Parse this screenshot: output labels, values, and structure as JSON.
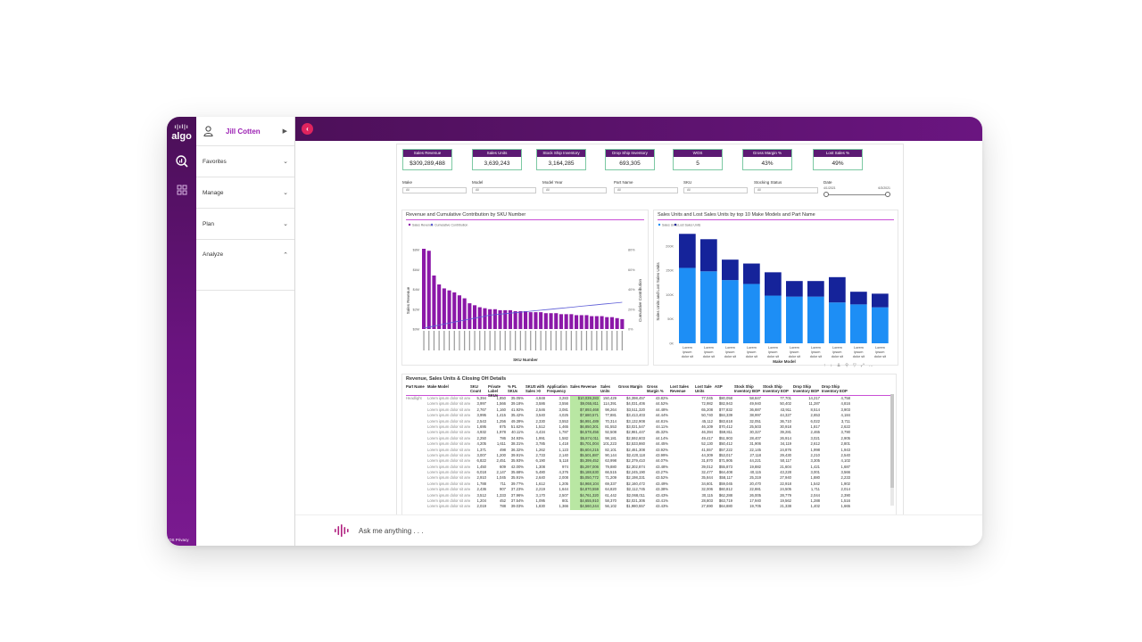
{
  "app": {
    "logo_text": "algo",
    "footer_links": "OS   Privacy"
  },
  "nav": {
    "user_name": "Jill Cotten",
    "sections": [
      {
        "label": "Favorites",
        "chevron": "chevron-down-icon"
      },
      {
        "label": "Manage",
        "chevron": "chevron-down-icon"
      },
      {
        "label": "Plan",
        "chevron": "chevron-down-icon"
      },
      {
        "label": "Analyze",
        "chevron": "chevron-up-icon"
      }
    ]
  },
  "kpis": [
    {
      "title": "Sales Revenue",
      "value": "$309,289,488"
    },
    {
      "title": "Sales Units",
      "value": "3,639,243"
    },
    {
      "title": "Stock Ship Inventory",
      "value": "3,164,285"
    },
    {
      "title": "Drop Ship Inventory",
      "value": "693,305"
    },
    {
      "title": "WOS",
      "value": "5"
    },
    {
      "title": "Gross Margin %",
      "value": "43%"
    },
    {
      "title": "Lost Sales %",
      "value": "49%"
    }
  ],
  "filters": [
    {
      "label": "Make",
      "value": "All"
    },
    {
      "label": "Model",
      "value": "All"
    },
    {
      "label": "Model Year",
      "value": "All"
    },
    {
      "label": "Part Name",
      "value": "All"
    },
    {
      "label": "SKU",
      "value": "All"
    },
    {
      "label": "Stocking Status",
      "value": "All"
    }
  ],
  "date_filter": {
    "label": "Date",
    "start": "4/1/2021",
    "end": "6/3/2021"
  },
  "charts": {
    "pareto": {
      "title": "Revenue and Cumulative Contribution by SKU Number",
      "legend": [
        "Sales Revenue",
        "Cumulative Contribution"
      ],
      "xlabel": "SKU Number",
      "ylabel": "Sales Revenue",
      "y2label": "Cumulative Contribution",
      "yticks": [
        "$0M",
        "$2M",
        "$4M",
        "$6M",
        "$8M"
      ],
      "y2ticks": [
        "0%",
        "20%",
        "40%",
        "60%",
        "80%"
      ]
    },
    "stacked": {
      "title": "Sales Units and Lost Sales Units by top 10 Make Models and Part Name",
      "legend": [
        "Sales Units",
        "Lost Sales Units"
      ],
      "xlabel": "Make Model",
      "ylabel": "Sales Units and Lost Sales Units",
      "yticks": [
        "0K",
        "50K",
        "100K",
        "150K",
        "200K"
      ],
      "category_label": "Lorem ipsum dolor sit"
    }
  },
  "chart_data": [
    {
      "type": "bar",
      "title": "Revenue and Cumulative Contribution by SKU Number",
      "xlabel": "SKU Number",
      "ylabel": "Sales Revenue",
      "ylim": [
        0,
        9
      ],
      "series": [
        {
          "name": "Sales Revenue",
          "values": [
            8.1,
            7.9,
            5.4,
            4.5,
            4.1,
            3.9,
            3.7,
            3.4,
            3.1,
            2.6,
            2.4,
            2.2,
            2.1,
            2.0,
            2.0,
            1.9,
            1.9,
            1.9,
            1.8,
            1.8,
            1.8,
            1.7,
            1.7,
            1.7,
            1.6,
            1.6,
            1.6,
            1.5,
            1.5,
            1.5,
            1.4,
            1.4,
            1.4,
            1.3,
            1.3,
            1.3,
            1.2,
            1.2,
            1.1,
            1.0
          ]
        },
        {
          "name": "Cumulative Contribution",
          "axis": "right",
          "ylim": [
            0,
            90
          ],
          "values": [
            1,
            2,
            3,
            4,
            5,
            6,
            7,
            8,
            9,
            10,
            11,
            12,
            13,
            14,
            14.5,
            15,
            15.5,
            16,
            16.5,
            17,
            17.5,
            18,
            18.5,
            19,
            19.5,
            20,
            20.5,
            21,
            21.5,
            22,
            22.5,
            23,
            23.5,
            24,
            24.5,
            25,
            25.5,
            26,
            26.5,
            27
          ]
        }
      ]
    },
    {
      "type": "bar",
      "title": "Sales Units and Lost Sales Units by top 10 Make Models and Part Name",
      "xlabel": "Make Model",
      "ylabel": "Sales Units and Lost Sales Units",
      "ylim": [
        0,
        220
      ],
      "stacked": true,
      "categories": [
        "Lorem ipsum dolor sit",
        "Lorem ipsum dolor sit",
        "Lorem ipsum dolor sit",
        "Lorem ipsum dolor sit",
        "Lorem ipsum dolor sit",
        "Lorem ipsum dolor sit",
        "Lorem ipsum dolor sit",
        "Lorem ipsum dolor sit",
        "Lorem ipsum dolor sit",
        "Lorem ipsum dolor sit"
      ],
      "series": [
        {
          "name": "Sales Units",
          "values": [
            155,
            148,
            130,
            122,
            98,
            96,
            96,
            84,
            80,
            74
          ]
        },
        {
          "name": "Lost Sales Units",
          "values": [
            70,
            66,
            42,
            42,
            48,
            32,
            32,
            52,
            26,
            28
          ]
        }
      ]
    }
  ],
  "table": {
    "title": "Revenue, Sales Units & Closing OH Details",
    "columns": [
      "Part Name",
      "Make Model",
      "SKU Count",
      "Private Label SKUs",
      "% PL SKUs",
      "SKUS with Sales >0",
      "Application Frequency",
      "Sales Revenue",
      "Sales Units",
      "Gross Margin",
      "Gross Margin %",
      "Lost Sales Revenue",
      "Lost Sale Units",
      "ASP",
      "Stock Ship Inventory BOP",
      "Stock Ship Inventory EOP",
      "Drop Ship Inventory BOP",
      "Drop Ship Inventory EOP"
    ],
    "rows": [
      [
        "Headlight",
        "Lorem ipsum dolor sit amet",
        "5,394",
        "1,850",
        "35.05%",
        "4,848",
        "3,283",
        "$10,039,283",
        "150,429",
        "$4,398,457",
        "43.82%",
        "",
        "77,045",
        "$80,058",
        "58,847",
        "77,701",
        "14,217",
        "4,758"
      ],
      [
        "",
        "Lorem ipsum dolor sit amet",
        "3,997",
        "1,566",
        "39.18%",
        "3,586",
        "3,556",
        "$9,055,811",
        "114,391",
        "$4,031,406",
        "44.52%",
        "",
        "72,982",
        "$82,943",
        "49,940",
        "50,402",
        "11,287",
        "4,816"
      ],
      [
        "",
        "Lorem ipsum dolor sit amet",
        "2,767",
        "1,160",
        "41.92%",
        "2,546",
        "3,081",
        "$7,893,468",
        "98,264",
        "$3,511,320",
        "44.48%",
        "",
        "65,208",
        "$77,832",
        "36,887",
        "43,911",
        "8,514",
        "3,903"
      ],
      [
        "",
        "Lorem ipsum dolor sit amet",
        "3,995",
        "1,415",
        "35.42%",
        "3,540",
        "4,025",
        "$7,680,571",
        "77,881",
        "$3,413,403",
        "44.44%",
        "",
        "50,740",
        "$84,339",
        "38,997",
        "44,327",
        "2,653",
        "4,184"
      ],
      [
        "",
        "Lorem ipsum dolor sit amet",
        "2,543",
        "1,256",
        "49.39%",
        "2,330",
        "3,553",
        "$6,991,489",
        "70,314",
        "$3,132,908",
        "44.81%",
        "",
        "45,112",
        "$83,618",
        "32,051",
        "36,710",
        "6,022",
        "3,711"
      ],
      [
        "",
        "Lorem ipsum dolor sit amet",
        "1,695",
        "875",
        "51.62%",
        "1,512",
        "1,465",
        "$6,850,301",
        "81,553",
        "$3,021,547",
        "44.11%",
        "",
        "46,109",
        "$70,412",
        "25,503",
        "30,918",
        "1,817",
        "2,622"
      ],
      [
        "",
        "Lorem ipsum dolor sit amet",
        "4,932",
        "1,978",
        "40.11%",
        "4,434",
        "1,787",
        "$6,578,456",
        "92,508",
        "$2,981,447",
        "45.32%",
        "",
        "46,394",
        "$59,811",
        "30,327",
        "39,281",
        "2,465",
        "3,790"
      ],
      [
        "",
        "Lorem ipsum dolor sit amet",
        "2,250",
        "786",
        "34.93%",
        "1,991",
        "1,582",
        "$5,874,011",
        "98,181",
        "$2,592,603",
        "44.14%",
        "",
        "49,417",
        "$51,903",
        "28,407",
        "26,914",
        "3,021",
        "2,905"
      ],
      [
        "",
        "Lorem ipsum dolor sit amet",
        "4,205",
        "1,611",
        "38.31%",
        "3,785",
        "1,418",
        "$5,701,004",
        "101,223",
        "$2,533,860",
        "44.45%",
        "",
        "52,130",
        "$50,412",
        "31,906",
        "34,119",
        "2,612",
        "2,801"
      ],
      [
        "",
        "Lorem ipsum dolor sit amet",
        "1,371",
        "498",
        "36.32%",
        "1,262",
        "1,123",
        "$5,604,215",
        "82,101",
        "$2,461,308",
        "43.92%",
        "",
        "41,557",
        "$57,222",
        "22,145",
        "24,876",
        "1,998",
        "1,943"
      ],
      [
        "",
        "Lorem ipsum dolor sit amet",
        "3,007",
        "1,200",
        "39.91%",
        "2,733",
        "2,140",
        "$5,501,887",
        "90,144",
        "$2,420,118",
        "43.99%",
        "",
        "44,309",
        "$53,017",
        "27,118",
        "29,430",
        "2,210",
        "2,540"
      ],
      [
        "",
        "Lorem ipsum dolor sit amet",
        "6,822",
        "2,451",
        "35.93%",
        "6,190",
        "5,118",
        "$5,399,452",
        "63,998",
        "$2,379,410",
        "44.07%",
        "",
        "31,870",
        "$71,905",
        "44,221",
        "50,117",
        "3,305",
        "4,102"
      ],
      [
        "",
        "Lorem ipsum dolor sit amet",
        "1,450",
        "609",
        "42.00%",
        "1,308",
        "974",
        "$5,297,006",
        "79,880",
        "$2,302,874",
        "43.48%",
        "",
        "39,012",
        "$55,873",
        "19,882",
        "21,604",
        "1,421",
        "1,687"
      ],
      [
        "",
        "Lorem ipsum dolor sit amet",
        "6,018",
        "2,147",
        "35.68%",
        "5,480",
        "4,376",
        "$5,188,630",
        "66,515",
        "$2,245,190",
        "43.27%",
        "",
        "32,477",
        "$64,408",
        "40,115",
        "43,228",
        "3,001",
        "3,566"
      ],
      [
        "",
        "Lorem ipsum dolor sit amet",
        "2,910",
        "1,045",
        "35.91%",
        "2,640",
        "2,008",
        "$5,050,772",
        "71,209",
        "$2,198,331",
        "43.52%",
        "",
        "35,844",
        "$58,117",
        "25,319",
        "27,940",
        "1,880",
        "2,233"
      ],
      [
        "",
        "Lorem ipsum dolor sit amet",
        "1,788",
        "711",
        "39.77%",
        "1,612",
        "1,205",
        "$4,968,104",
        "69,337",
        "$2,160,472",
        "43.49%",
        "",
        "34,601",
        "$59,045",
        "20,470",
        "22,918",
        "1,542",
        "1,902"
      ],
      [
        "",
        "Lorem ipsum dolor sit amet",
        "2,436",
        "907",
        "37.23%",
        "2,219",
        "1,644",
        "$4,870,559",
        "64,820",
        "$2,112,745",
        "43.38%",
        "",
        "32,006",
        "$60,812",
        "22,881",
        "24,505",
        "1,711",
        "2,014"
      ],
      [
        "",
        "Lorem ipsum dolor sit amet",
        "3,512",
        "1,333",
        "37.96%",
        "3,170",
        "2,507",
        "$4,761,320",
        "61,442",
        "$2,068,011",
        "43.43%",
        "",
        "30,115",
        "$62,288",
        "26,005",
        "28,779",
        "2,044",
        "2,390"
      ],
      [
        "",
        "Lorem ipsum dolor sit amet",
        "1,204",
        "452",
        "37.54%",
        "1,095",
        "801",
        "$4,655,910",
        "58,370",
        "$2,021,306",
        "43.41%",
        "",
        "28,803",
        "$63,719",
        "17,940",
        "19,562",
        "1,288",
        "1,516"
      ],
      [
        "",
        "Lorem ipsum dolor sit amet",
        "2,019",
        "788",
        "39.03%",
        "1,830",
        "1,366",
        "$4,560,244",
        "56,102",
        "$1,980,557",
        "43.43%",
        "",
        "27,690",
        "$64,880",
        "19,705",
        "21,338",
        "1,402",
        "1,665"
      ]
    ]
  },
  "ask": {
    "placeholder": "Ask me anything . . ."
  }
}
